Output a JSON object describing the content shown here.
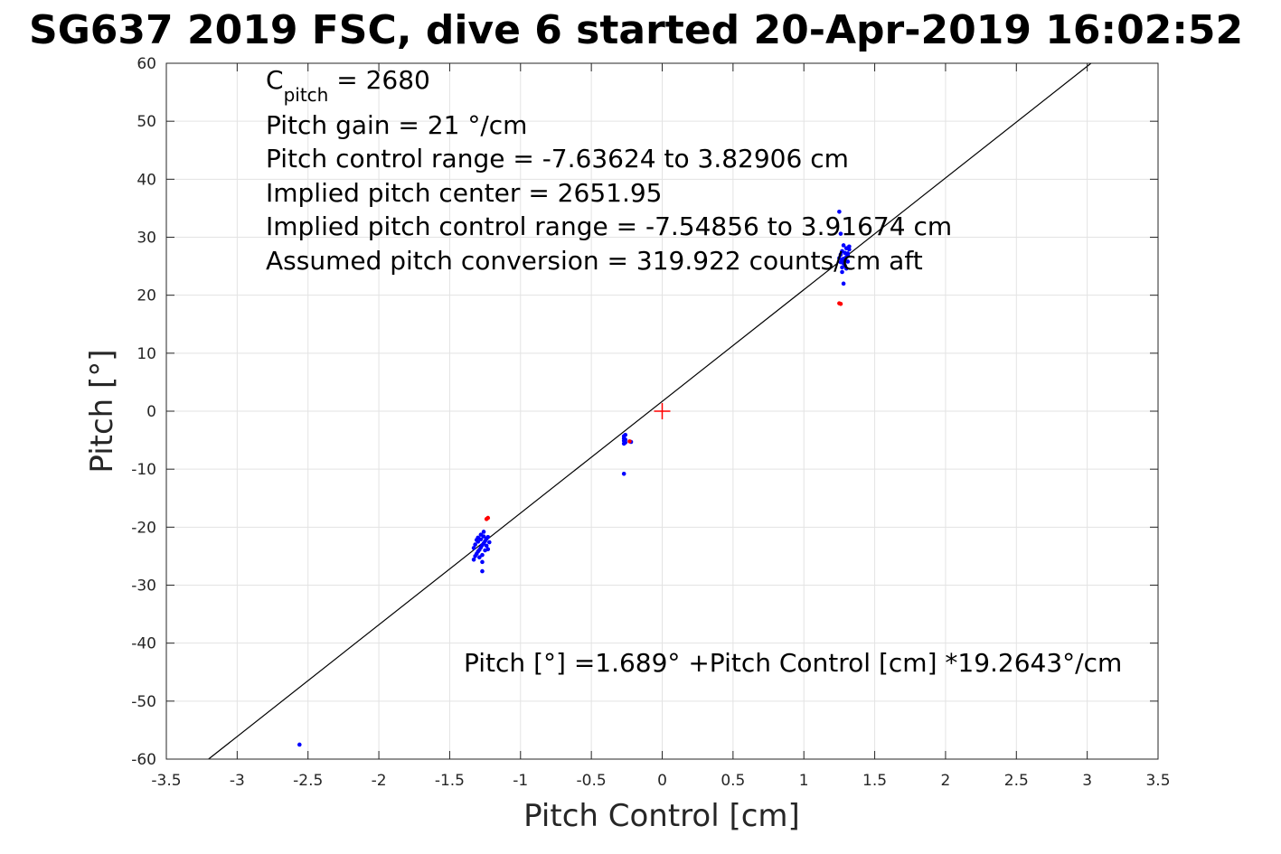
{
  "chart_data": {
    "type": "scatter",
    "title": "SG637 2019 FSC, dive 6 started 20-Apr-2019 16:02:52",
    "xlabel": "Pitch Control [cm]",
    "ylabel": "Pitch [°]",
    "xlim": [
      -3.5,
      3.5
    ],
    "ylim": [
      -60,
      60
    ],
    "xticks": [
      -3.5,
      -3,
      -2.5,
      -2,
      -1.5,
      -1,
      -0.5,
      0,
      0.5,
      1,
      1.5,
      2,
      2.5,
      3,
      3.5
    ],
    "yticks": [
      -60,
      -50,
      -40,
      -30,
      -20,
      -10,
      0,
      10,
      20,
      30,
      40,
      50,
      60
    ],
    "xtick_labels": [
      "-3.5",
      "-3",
      "-2.5",
      "-2",
      "-1.5",
      "-1",
      "-0.5",
      "0",
      "0.5",
      "1",
      "1.5",
      "2",
      "2.5",
      "3",
      "3.5"
    ],
    "ytick_labels": [
      "-60",
      "-50",
      "-40",
      "-30",
      "-20",
      "-10",
      "0",
      "10",
      "20",
      "30",
      "40",
      "50",
      "60"
    ],
    "grid": true,
    "annotations": {
      "cpitch_base": "C",
      "cpitch_sub": "pitch",
      "cpitch_value": " = 2680",
      "line2": "Pitch gain = 21 °/cm",
      "line3": "Pitch control range = -7.63624 to 3.82906 cm",
      "line4": "Implied pitch center = 2651.95",
      "line5": "Implied pitch control range = -7.54856 to 3.91674 cm",
      "line6": "Assumed pitch conversion = 319.922 counts/cm aft",
      "fit_label": "Pitch [°] =1.689° +Pitch Control [cm] *19.2643°/cm"
    },
    "fit_line": {
      "intercept": 1.689,
      "slope": 19.2643,
      "color": "#000000"
    },
    "center_marker": {
      "x": 0,
      "y": 0,
      "color": "#ff0000"
    },
    "series": [
      {
        "color": "#0000ff",
        "points": [
          [
            -2.56,
            -57.5
          ],
          [
            -1.27,
            -27.6
          ],
          [
            -1.33,
            -25.6
          ],
          [
            -1.32,
            -25.0
          ],
          [
            -1.31,
            -24.6
          ],
          [
            -1.3,
            -24.2
          ],
          [
            -1.29,
            -23.9
          ],
          [
            -1.28,
            -23.5
          ],
          [
            -1.27,
            -23.1
          ],
          [
            -1.26,
            -22.8
          ],
          [
            -1.25,
            -22.4
          ],
          [
            -1.24,
            -22.0
          ],
          [
            -1.23,
            -21.7
          ],
          [
            -1.32,
            -23.0
          ],
          [
            -1.3,
            -22.5
          ],
          [
            -1.28,
            -22.1
          ],
          [
            -1.26,
            -21.6
          ],
          [
            -1.25,
            -24.0
          ],
          [
            -1.27,
            -24.8
          ],
          [
            -1.29,
            -25.2
          ],
          [
            -1.31,
            -22.2
          ],
          [
            -1.24,
            -23.2
          ],
          [
            -1.23,
            -23.8
          ],
          [
            -1.26,
            -20.8
          ],
          [
            -1.28,
            -21.3
          ],
          [
            -1.3,
            -21.8
          ],
          [
            -1.33,
            -23.6
          ],
          [
            -1.22,
            -22.6
          ],
          [
            -1.27,
            -26.0
          ],
          [
            -0.27,
            -4.3
          ],
          [
            -0.27,
            -4.7
          ],
          [
            -0.27,
            -5.1
          ],
          [
            -0.26,
            -5.4
          ],
          [
            -0.26,
            -4.9
          ],
          [
            -0.27,
            -5.6
          ],
          [
            -0.26,
            -4.1
          ],
          [
            -0.22,
            -5.3
          ],
          [
            -0.27,
            -10.8
          ],
          [
            1.25,
            34.4
          ],
          [
            1.26,
            30.6
          ],
          [
            1.28,
            22.0
          ],
          [
            1.27,
            24.0
          ],
          [
            1.27,
            24.8
          ],
          [
            1.28,
            25.5
          ],
          [
            1.29,
            26.0
          ],
          [
            1.3,
            26.6
          ],
          [
            1.31,
            27.2
          ],
          [
            1.32,
            27.9
          ],
          [
            1.32,
            28.4
          ],
          [
            1.26,
            27.0
          ],
          [
            1.27,
            27.6
          ],
          [
            1.28,
            26.3
          ],
          [
            1.29,
            25.1
          ],
          [
            1.3,
            28.1
          ],
          [
            1.31,
            25.8
          ],
          [
            1.25,
            26.4
          ],
          [
            1.26,
            25.7
          ],
          [
            1.3,
            24.6
          ],
          [
            1.28,
            28.6
          ],
          [
            1.29,
            27.3
          ],
          [
            1.27,
            26.1
          ],
          [
            1.31,
            26.9
          ]
        ]
      },
      {
        "color": "#ff0000",
        "points": [
          [
            -1.24,
            -18.6
          ],
          [
            -1.23,
            -18.4
          ],
          [
            1.25,
            18.6
          ],
          [
            1.26,
            18.5
          ],
          [
            -0.23,
            -5.2
          ]
        ]
      }
    ]
  }
}
